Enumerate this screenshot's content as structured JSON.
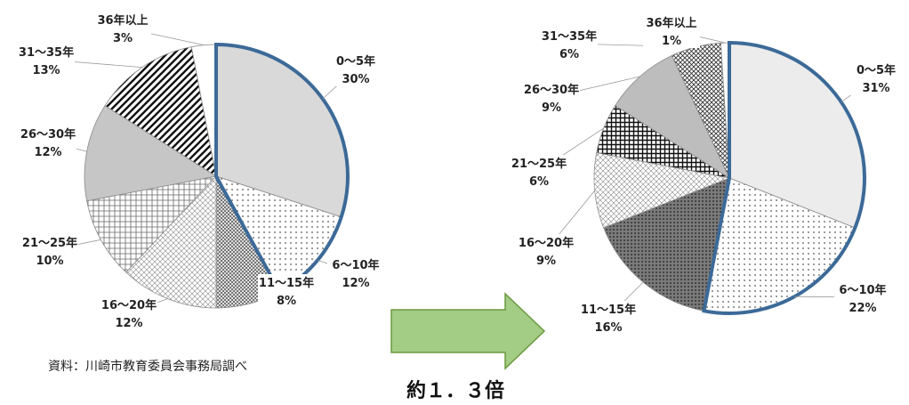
{
  "chart_data": [
    {
      "type": "pie",
      "categories": [
        "0～5年",
        "6～10年",
        "11～15年",
        "16～20年",
        "21～25年",
        "26～30年",
        "31～35年",
        "36年以上"
      ],
      "values": [
        30,
        12,
        8,
        12,
        10,
        12,
        13,
        3
      ],
      "labels": [
        "30%",
        "12%",
        "8%",
        "12%",
        "10%",
        "12%",
        "13%",
        "3%"
      ]
    },
    {
      "type": "pie",
      "categories": [
        "0～5年",
        "6～10年",
        "11～15年",
        "16～20年",
        "21～25年",
        "26～30年",
        "31～35年",
        "36年以上"
      ],
      "values": [
        31,
        22,
        16,
        9,
        6,
        9,
        6,
        1
      ],
      "labels": [
        "31%",
        "22%",
        "16%",
        "9%",
        "6%",
        "9%",
        "6%",
        "1%"
      ]
    }
  ],
  "source_note": "資料：川崎市教育委員会事務局調べ",
  "ratio_label": "約１．３倍",
  "colors": {
    "highlight": "#3c6a98",
    "arrow_fill": "#a3cc85",
    "arrow_stroke": "#6a9a3f"
  }
}
